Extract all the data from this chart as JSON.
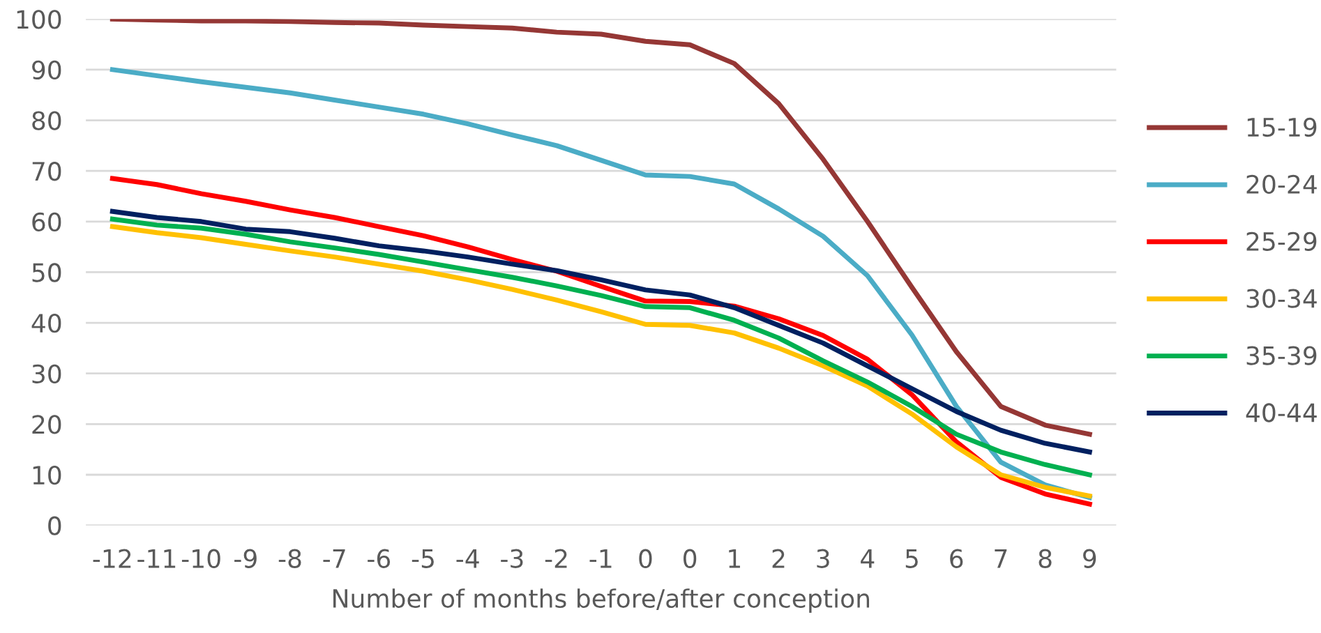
{
  "chart_data": {
    "type": "line",
    "xlabel": "Number of months before/after conception",
    "categories": [
      "-12",
      "-11",
      "-10",
      "-9",
      "-8",
      "-7",
      "-6",
      "-5",
      "-4",
      "-3",
      "-2",
      "-1",
      "0",
      "0",
      "1",
      "2",
      "3",
      "4",
      "5",
      "6",
      "7",
      "8",
      "9"
    ],
    "ylim": [
      0,
      100
    ],
    "yticks": [
      0,
      10,
      20,
      30,
      40,
      50,
      60,
      70,
      80,
      90,
      100
    ],
    "grid": "y",
    "legend": "right",
    "marker": "none",
    "line_style": "solid",
    "series": [
      {
        "name": "15-19",
        "color": "#953735",
        "values": [
          100,
          99.8,
          99.6,
          99.6,
          99.5,
          99.3,
          99.2,
          98.8,
          98.5,
          98.2,
          97.4,
          97,
          95.6,
          94.9,
          91.2,
          83.3,
          72.3,
          60,
          47,
          34.3,
          23.5,
          19.8,
          18
        ]
      },
      {
        "name": "20-24",
        "color": "#4bacc6",
        "values": [
          90,
          88.8,
          87.6,
          86.5,
          85.4,
          84,
          82.6,
          81.2,
          79.3,
          77.1,
          75,
          72.1,
          69.2,
          68.9,
          67.4,
          62.5,
          57.1,
          49.3,
          37.6,
          23.5,
          12.5,
          8,
          5.5
        ]
      },
      {
        "name": "25-29",
        "color": "#ff0000",
        "values": [
          68.5,
          67.3,
          65.5,
          64,
          62.3,
          60.8,
          59,
          57.2,
          55,
          52.5,
          50.2,
          47.2,
          44.3,
          44.2,
          43.3,
          40.8,
          37.5,
          32.8,
          25.8,
          16.5,
          9.5,
          6.2,
          4.2
        ]
      },
      {
        "name": "30-34",
        "color": "#ffc000",
        "values": [
          59,
          57.8,
          56.8,
          55.5,
          54.2,
          53,
          51.6,
          50.2,
          48.5,
          46.6,
          44.5,
          42.2,
          39.7,
          39.5,
          38,
          35,
          31.5,
          27.5,
          22,
          15.5,
          10,
          7.5,
          5.8
        ]
      },
      {
        "name": "35-39",
        "color": "#00b050",
        "values": [
          60.5,
          59.3,
          58.7,
          57.5,
          56,
          54.8,
          53.5,
          52,
          50.5,
          49,
          47.3,
          45.4,
          43.2,
          43,
          40.5,
          37,
          32.5,
          28.3,
          23.5,
          18,
          14.5,
          12,
          10
        ]
      },
      {
        "name": "40-44",
        "color": "#002060",
        "values": [
          62,
          60.8,
          60,
          58.5,
          58,
          56.7,
          55.2,
          54.2,
          53,
          51.6,
          50.3,
          48.5,
          46.5,
          45.5,
          43,
          39.5,
          36,
          31.5,
          27,
          22.5,
          18.8,
          16.2,
          14.5
        ]
      }
    ]
  }
}
